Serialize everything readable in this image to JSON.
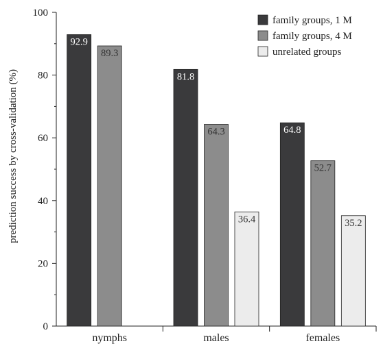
{
  "chart_data": {
    "type": "bar",
    "ylabel": "prediction success by cross-validation (%)",
    "xlabel": "",
    "ylim": [
      0,
      100
    ],
    "yticks": [
      "0",
      "20",
      "40",
      "60",
      "80",
      "100"
    ],
    "categories": [
      "nymphs",
      "males",
      "females"
    ],
    "series": [
      {
        "name": "family groups, 1 M",
        "color": "#3a3a3c",
        "values": [
          92.9,
          81.8,
          64.8
        ],
        "labels": [
          "92.9",
          "81.8",
          "64.8"
        ]
      },
      {
        "name": "family groups, 4 M",
        "color": "#8c8c8c",
        "values": [
          89.3,
          64.3,
          52.7
        ],
        "labels": [
          "89.3",
          "64.3",
          "52.7"
        ]
      },
      {
        "name": "unrelated groups",
        "color": "#ececec",
        "values": [
          null,
          36.4,
          35.2
        ],
        "labels": [
          "",
          "36.4",
          "35.2"
        ]
      }
    ],
    "legend_position": "top-right",
    "grid": false
  }
}
